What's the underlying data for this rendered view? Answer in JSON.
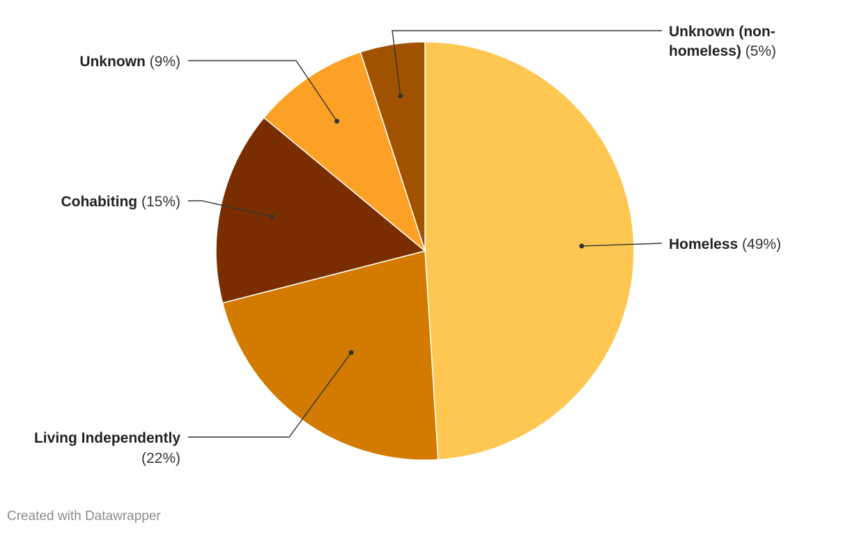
{
  "chart_data": {
    "type": "pie",
    "slices": [
      {
        "label": "Homeless",
        "value": 49,
        "color": "#fec751",
        "label_line2": "",
        "pct_text": "(49%)"
      },
      {
        "label": "Living Independently",
        "value": 22,
        "color": "#d27b00",
        "label_line2": "",
        "pct_text": "(22%)"
      },
      {
        "label": "Cohabiting",
        "value": 15,
        "color": "#7a2e00",
        "label_line2": "",
        "pct_text": "(15%)"
      },
      {
        "label": "Unknown",
        "value": 9,
        "color": "#fca125",
        "label_line2": "",
        "pct_text": "(9%)"
      },
      {
        "label": "Unknown (non-",
        "value": 5,
        "color": "#a15200",
        "label_line2": "homeless)",
        "pct_text": "(5%)"
      }
    ]
  },
  "footer": {
    "credit": "Created with Datawrapper"
  }
}
